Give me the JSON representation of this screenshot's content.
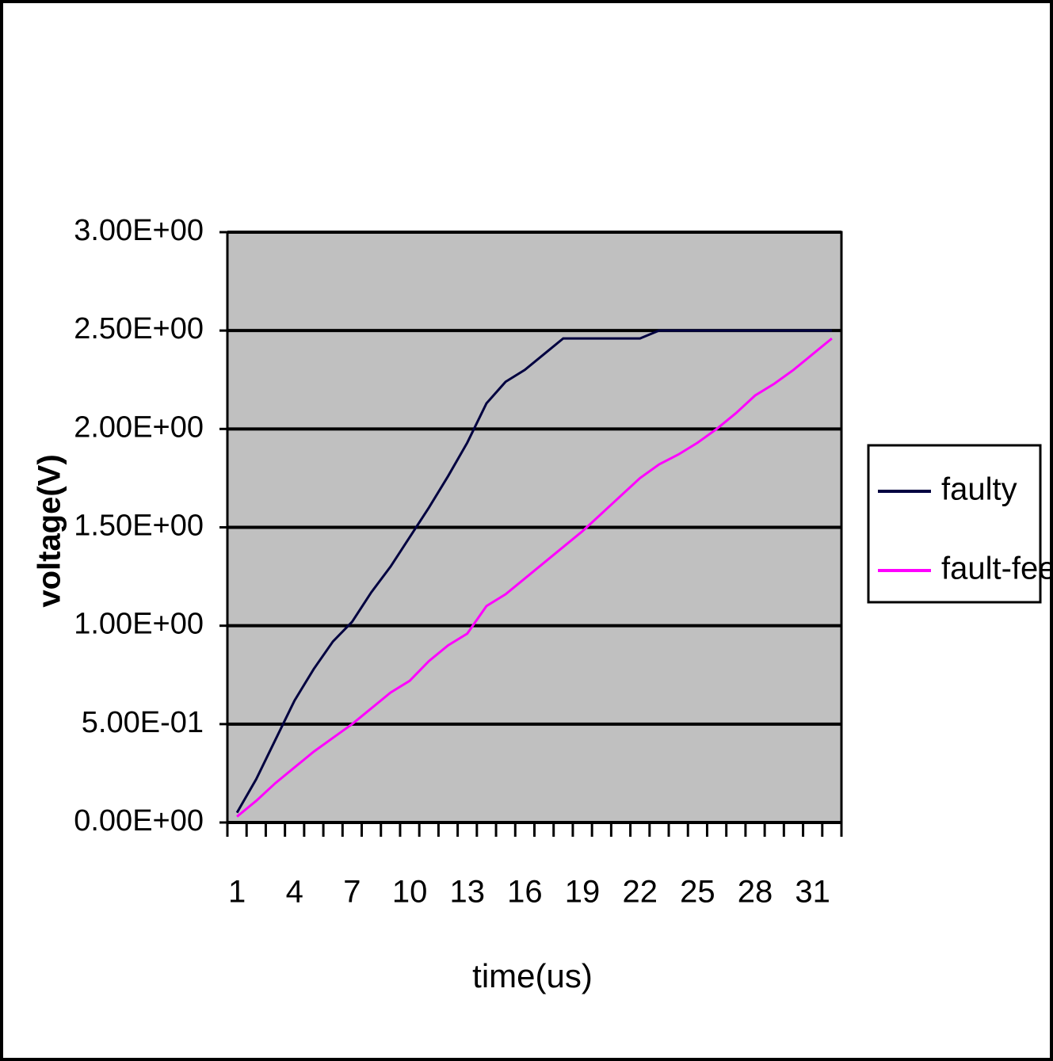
{
  "chart_data": {
    "type": "line",
    "x_label": "time(us)",
    "y_label": "voltage(V)",
    "categories": [
      1,
      null,
      null,
      4,
      null,
      null,
      7,
      null,
      null,
      10,
      null,
      null,
      13,
      null,
      null,
      16,
      null,
      null,
      19,
      null,
      null,
      22,
      null,
      null,
      25,
      null,
      null,
      28,
      null,
      null,
      31,
      null
    ],
    "series": [
      {
        "name": "faulty",
        "color": "#000040",
        "values": [
          0.05,
          0.22,
          0.42,
          0.62,
          0.78,
          0.92,
          1.02,
          1.17,
          1.3,
          1.45,
          1.6,
          1.76,
          1.93,
          2.13,
          2.24,
          2.3,
          2.38,
          2.46,
          2.46,
          2.46,
          2.46,
          2.46,
          2.5,
          2.5,
          2.5,
          2.5,
          2.5,
          2.5,
          2.5,
          2.5,
          2.5,
          2.5
        ]
      },
      {
        "name": "fault-fee",
        "color": "#ff00ff",
        "values": [
          0.03,
          0.11,
          0.2,
          0.28,
          0.36,
          0.43,
          0.5,
          0.58,
          0.66,
          0.72,
          0.82,
          0.9,
          0.96,
          1.1,
          1.16,
          1.24,
          1.32,
          1.4,
          1.48,
          1.57,
          1.66,
          1.75,
          1.82,
          1.87,
          1.93,
          2.0,
          2.08,
          2.17,
          2.23,
          2.3,
          2.38,
          2.46
        ]
      }
    ],
    "ylim": [
      0,
      3
    ],
    "yticks": [
      {
        "value": 0,
        "label": "0.00E+00"
      },
      {
        "value": 0.5,
        "label": "5.00E-01"
      },
      {
        "value": 1,
        "label": "1.00E+00"
      },
      {
        "value": 1.5,
        "label": "1.50E+00"
      },
      {
        "value": 2,
        "label": "2.00E+00"
      },
      {
        "value": 2.5,
        "label": "2.50E+00"
      },
      {
        "value": 3,
        "label": "3.00E+00"
      }
    ],
    "grid": true,
    "legend": "right"
  }
}
